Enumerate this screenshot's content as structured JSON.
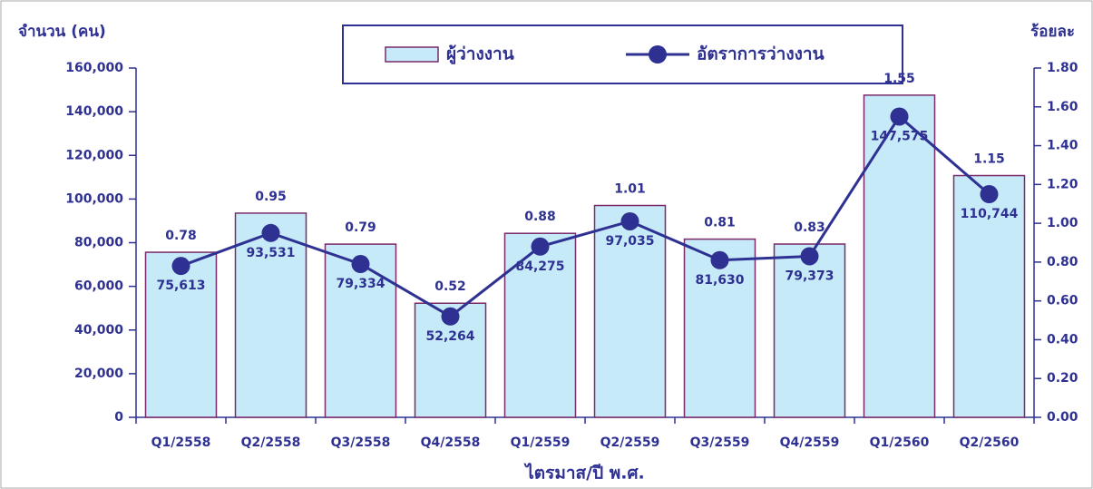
{
  "chart_data": {
    "type": "bar_line",
    "y_label": "จำนวน (คน)",
    "y2_label": "ร้อยละ",
    "x_label": "ไตรมาส/ปี พ.ศ.",
    "categories": [
      "Q1/2558",
      "Q2/2558",
      "Q3/2558",
      "Q4/2558",
      "Q1/2559",
      "Q2/2559",
      "Q3/2559",
      "Q4/2559",
      "Q1/2560",
      "Q2/2560"
    ],
    "series": [
      {
        "name": "ผู้ว่างงาน",
        "type": "bar",
        "color": "#c7eaf8",
        "edge_color": "#7a2a6a",
        "values": [
          75613,
          93531,
          79334,
          52264,
          84275,
          97035,
          81630,
          79373,
          147575,
          110744
        ],
        "value_labels": [
          "75,613",
          "93,531",
          "79,334",
          "52,264",
          "84,275",
          "97,035",
          "81,630",
          "79,373",
          "147,575",
          "110,744"
        ]
      },
      {
        "name": "อัตราการว่างงาน",
        "type": "line",
        "axis": "y2",
        "color": "#2e3192",
        "values": [
          0.78,
          0.95,
          0.79,
          0.52,
          0.88,
          1.01,
          0.81,
          0.83,
          1.55,
          1.15
        ]
      }
    ],
    "ylim": [
      0,
      160000
    ],
    "yticks": [
      0,
      {
        "value": 20000,
        "label": "20,000"
      },
      {
        "value": 40000,
        "label": "40,000"
      },
      {
        "value": 60000,
        "label": "60,000"
      },
      {
        "value": 80000,
        "label": "80,000"
      },
      {
        "value": 100000,
        "label": "100,000"
      },
      {
        "value": 120000,
        "label": "120,000"
      },
      {
        "value": 140000,
        "label": "140,000"
      },
      {
        "value": 160000,
        "label": "160,000"
      }
    ],
    "y2lim": [
      0,
      1.8
    ],
    "y2ticks": [
      {
        "value": 0,
        "label": "0.00"
      },
      {
        "value": 0.2,
        "label": "0.20"
      },
      {
        "value": 0.4,
        "label": "0.40"
      },
      {
        "value": 0.6,
        "label": "0.60"
      },
      {
        "value": 0.8,
        "label": "0.80"
      },
      {
        "value": 1,
        "label": "1.00"
      },
      {
        "value": 1.2,
        "label": "1.20"
      },
      {
        "value": 1.4,
        "label": "1.40"
      },
      {
        "value": 1.6,
        "label": "1.60"
      },
      {
        "value": 1.8,
        "label": "1.80"
      }
    ],
    "legend": "top"
  }
}
